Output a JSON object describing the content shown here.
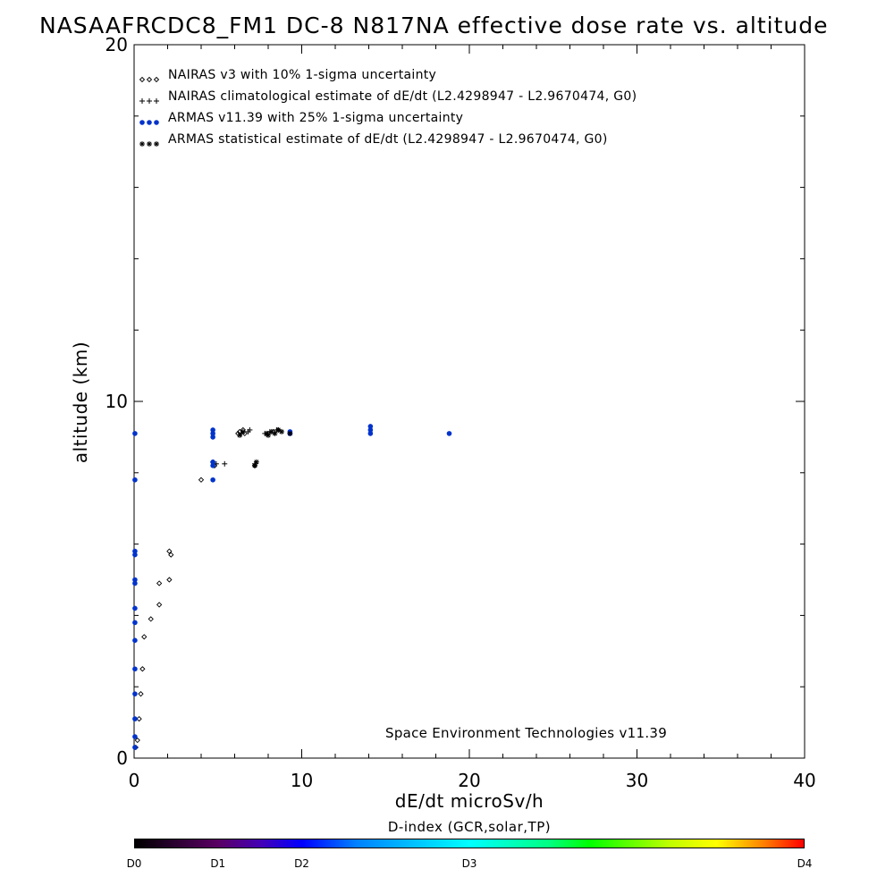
{
  "chart_data": {
    "type": "scatter",
    "title": "NASAAFRCDC8_FM1 DC-8   N817NA effective dose rate vs. altitude",
    "xlabel": "dE/dt microSv/h",
    "ylabel": "altitude (km)",
    "xlim": [
      0,
      40
    ],
    "ylim": [
      0,
      20
    ],
    "x_ticks": [
      "0",
      "10",
      "20",
      "30",
      "40"
    ],
    "y_ticks": [
      "0",
      "10",
      "20"
    ],
    "legend_placement": "top-left",
    "annotation": "Space Environment Technologies v11.39",
    "colorbar": {
      "label": "D-index (GCR,solar,TP)",
      "ticks": [
        {
          "label": "D0",
          "pos": 0
        },
        {
          "label": "D1",
          "pos": 0.125
        },
        {
          "label": "D2",
          "pos": 0.25
        },
        {
          "label": "D3",
          "pos": 0.5
        },
        {
          "label": "D4",
          "pos": 1
        }
      ]
    },
    "series": [
      {
        "name": "NAIRAS v3 with 10% 1-sigma uncertainty",
        "marker": "diamond",
        "color": "#000000",
        "points": [
          [
            0.1,
            0.3
          ],
          [
            0.2,
            0.5
          ],
          [
            0.3,
            1.1
          ],
          [
            0.4,
            1.8
          ],
          [
            0.5,
            2.5
          ],
          [
            0.6,
            3.4
          ],
          [
            1.0,
            3.9
          ],
          [
            1.5,
            4.3
          ],
          [
            1.5,
            4.9
          ],
          [
            2.1,
            5.0
          ],
          [
            2.1,
            5.8
          ],
          [
            2.2,
            5.7
          ],
          [
            4.0,
            7.8
          ],
          [
            4.7,
            8.3
          ],
          [
            4.8,
            8.2
          ],
          [
            6.2,
            9.1
          ],
          [
            6.3,
            9.15
          ],
          [
            6.5,
            9.2
          ],
          [
            6.6,
            9.1
          ],
          [
            7.2,
            8.2
          ],
          [
            8.0,
            9.1
          ],
          [
            8.3,
            9.15
          ],
          [
            8.6,
            9.2
          ]
        ]
      },
      {
        "name": "NAIRAS climatological estimate of dE/dt (L2.4298947 - L2.9670474, G0)",
        "marker": "plus",
        "color": "#000000",
        "points": [
          [
            4.9,
            8.25
          ],
          [
            5.4,
            8.25
          ],
          [
            7.2,
            8.25
          ],
          [
            6.4,
            9.1
          ],
          [
            6.8,
            9.15
          ],
          [
            6.9,
            9.2
          ],
          [
            7.8,
            9.1
          ],
          [
            8.1,
            9.15
          ],
          [
            8.5,
            9.2
          ]
        ]
      },
      {
        "name": "ARMAS v11.39 with 25% 1-sigma uncertainty",
        "marker": "dot",
        "color": "#0033cc",
        "points": [
          [
            0.05,
            0.3
          ],
          [
            0.05,
            0.6
          ],
          [
            0.05,
            1.1
          ],
          [
            0.05,
            1.8
          ],
          [
            0.05,
            2.5
          ],
          [
            0.05,
            3.3
          ],
          [
            0.05,
            3.8
          ],
          [
            0.05,
            4.2
          ],
          [
            0.05,
            4.9
          ],
          [
            0.05,
            5.0
          ],
          [
            0.05,
            5.7
          ],
          [
            0.05,
            5.8
          ],
          [
            0.05,
            7.8
          ],
          [
            0.05,
            9.1
          ],
          [
            4.7,
            7.8
          ],
          [
            4.7,
            8.2
          ],
          [
            4.7,
            8.3
          ],
          [
            4.7,
            9.0
          ],
          [
            4.7,
            9.1
          ],
          [
            4.7,
            9.2
          ],
          [
            9.3,
            9.1
          ],
          [
            9.3,
            9.15
          ],
          [
            14.1,
            9.1
          ],
          [
            14.1,
            9.2
          ],
          [
            14.1,
            9.3
          ],
          [
            18.8,
            9.1
          ]
        ]
      },
      {
        "name": "ARMAS statistical estimate of dE/dt (L2.4298947 - L2.9670474, G0)",
        "marker": "asterisk",
        "color": "#000000",
        "points": [
          [
            6.3,
            9.05
          ],
          [
            6.5,
            9.15
          ],
          [
            7.2,
            8.2
          ],
          [
            7.3,
            8.3
          ],
          [
            7.9,
            9.1
          ],
          [
            8.0,
            9.05
          ],
          [
            8.2,
            9.15
          ],
          [
            8.4,
            9.1
          ],
          [
            8.6,
            9.2
          ],
          [
            8.8,
            9.15
          ],
          [
            9.3,
            9.1
          ]
        ]
      }
    ]
  }
}
